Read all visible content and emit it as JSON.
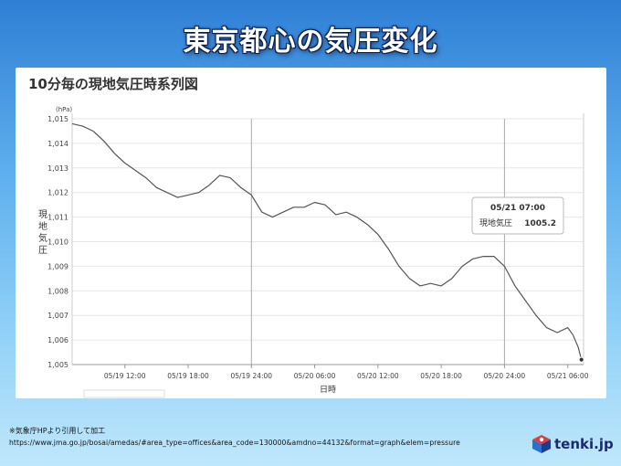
{
  "headline": "東京都心の気圧変化",
  "card_title": "10分毎の現地気圧時系列図",
  "footer": {
    "note": "※気象庁HPより引用して加工",
    "url": "https://www.jma.go.jp/bosai/amedas/#area_type=offices&area_code=130000&amdno=44132&format=graph&elem=pressure"
  },
  "logo": {
    "text": "tenki.jp"
  },
  "tooltip": {
    "time": "05/21 07:00",
    "label": "現地気圧",
    "value": "1005.2"
  },
  "chart_data": {
    "type": "line",
    "unit_label": "(hPa)",
    "ylabel": "現地気圧",
    "xlabel": "日時",
    "ylim": [
      1005,
      1015
    ],
    "yticks": [
      "1,005",
      "1,006",
      "1,007",
      "1,008",
      "1,009",
      "1,010",
      "1,011",
      "1,012",
      "1,013",
      "1,014",
      "1,015"
    ],
    "xticks": [
      "05/19 12:00",
      "05/19 18:00",
      "05/19 24:00",
      "05/20 06:00",
      "05/20 12:00",
      "05/20 18:00",
      "05/20 24:00",
      "05/21 06:00"
    ],
    "xrange_hours": [
      7,
      55.5
    ],
    "vertical_lines_hours": [
      24,
      48
    ],
    "grid": true,
    "line_color": "#555555",
    "series": [
      {
        "x_hours": [
          7,
          8,
          9,
          10,
          11,
          12,
          13,
          14,
          15,
          16,
          17,
          18,
          19,
          20,
          21,
          22,
          23,
          24,
          25,
          26,
          27,
          28,
          29,
          30,
          31,
          32,
          33,
          34,
          35,
          36,
          37,
          38,
          39,
          40,
          41,
          42,
          43,
          44,
          45,
          46,
          47,
          48,
          49,
          50,
          51,
          52,
          53,
          54,
          54.5,
          55,
          55.3
        ],
        "values": [
          1014.8,
          1014.7,
          1014.5,
          1014.1,
          1013.6,
          1013.2,
          1012.9,
          1012.6,
          1012.2,
          1012.0,
          1011.8,
          1011.9,
          1012.0,
          1012.3,
          1012.7,
          1012.6,
          1012.2,
          1011.9,
          1011.2,
          1011.0,
          1011.2,
          1011.4,
          1011.4,
          1011.6,
          1011.5,
          1011.1,
          1011.2,
          1011.0,
          1010.7,
          1010.3,
          1009.7,
          1009.0,
          1008.5,
          1008.2,
          1008.3,
          1008.2,
          1008.5,
          1009.0,
          1009.3,
          1009.4,
          1009.4,
          1009.0,
          1008.2,
          1007.6,
          1007.0,
          1006.5,
          1006.3,
          1006.5,
          1006.2,
          1005.7,
          1005.2
        ]
      }
    ]
  }
}
